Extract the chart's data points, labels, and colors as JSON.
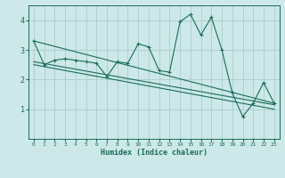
{
  "xlabel": "Humidex (Indice chaleur)",
  "ylabel": "",
  "bg_color": "#cce8e8",
  "line_color": "#1a6b5a",
  "grid_color": "#aacccc",
  "xlim": [
    -0.5,
    23.5
  ],
  "ylim": [
    0,
    4.5
  ],
  "yticks": [
    1,
    2,
    3,
    4
  ],
  "xticks": [
    0,
    1,
    2,
    3,
    4,
    5,
    6,
    7,
    8,
    9,
    10,
    11,
    12,
    13,
    14,
    15,
    16,
    17,
    18,
    19,
    20,
    21,
    22,
    23
  ],
  "series1_x": [
    0,
    1,
    2,
    3,
    4,
    5,
    6,
    7,
    8,
    9,
    10,
    11,
    12,
    13,
    14,
    15,
    16,
    17,
    18,
    19,
    20,
    21,
    22,
    23
  ],
  "series1_y": [
    3.3,
    2.5,
    2.65,
    2.7,
    2.65,
    2.6,
    2.55,
    2.1,
    2.6,
    2.55,
    3.2,
    3.1,
    2.3,
    2.25,
    3.95,
    4.2,
    3.5,
    4.1,
    3.0,
    1.55,
    0.75,
    1.2,
    1.9,
    1.2
  ],
  "series2_x": [
    0,
    23
  ],
  "series2_y": [
    3.3,
    1.2
  ],
  "series3_x": [
    0,
    23
  ],
  "series3_y": [
    2.5,
    1.0
  ],
  "series4_x": [
    0,
    23
  ],
  "series4_y": [
    2.6,
    1.15
  ]
}
